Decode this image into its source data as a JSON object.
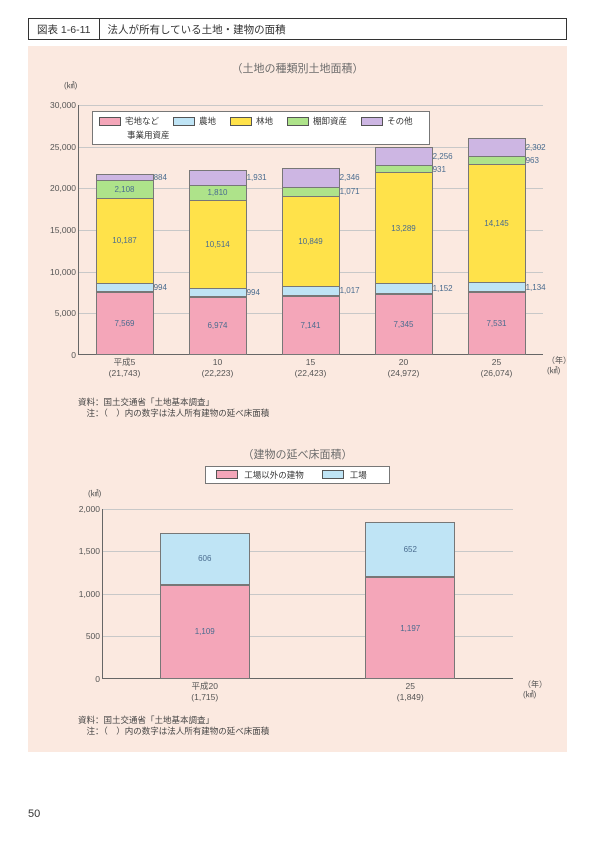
{
  "page_number": "50",
  "title_bar": {
    "number": "図表 1-6-11",
    "text": "法人が所有している土地・建物の面積"
  },
  "chart1": {
    "type": "stacked-bar",
    "subtitle": "（土地の種類別土地面積）",
    "y_unit": "(㎢)",
    "y_max_label": "30,000",
    "ylim": [
      0,
      30000
    ],
    "ytick_step": 5000,
    "yticks": [
      "0",
      "5,000",
      "10,000",
      "15,000",
      "20,000",
      "25,000",
      "30,000"
    ],
    "x_axis_end": [
      "（年）",
      "(㎢)"
    ],
    "legend": {
      "row1": [
        {
          "color": "#f4a6b9",
          "label": "宅地など"
        },
        {
          "color": "#bfe4f5",
          "label": "農地"
        },
        {
          "color": "#ffe24a",
          "label": "林地"
        },
        {
          "color": "#aee38a",
          "label": "棚卸資産"
        },
        {
          "color": "#cdb6e3",
          "label": "その他"
        }
      ],
      "row2_label": "事業用資産"
    },
    "bars": [
      {
        "x_top": "平成5",
        "x_bottom": "(21,743)",
        "segments": [
          {
            "key": "residential",
            "value": 7569,
            "label": "7,569",
            "color": "#f4a6b9",
            "inner": true
          },
          {
            "key": "farmland",
            "value": 994,
            "label": "994",
            "color": "#bfe4f5",
            "inner": true
          },
          {
            "key": "forest",
            "value": 10187,
            "label": "10,187",
            "color": "#ffe24a",
            "inner": true
          },
          {
            "key": "inventory",
            "value": 2108,
            "label": "2,108",
            "color": "#aee38a",
            "inner": true
          },
          {
            "key": "other",
            "value": 884,
            "label": "884",
            "color": "#cdb6e3",
            "inner": false
          }
        ]
      },
      {
        "x_top": "10",
        "x_bottom": "(22,223)",
        "segments": [
          {
            "key": "residential",
            "value": 6974,
            "label": "6,974",
            "color": "#f4a6b9",
            "inner": true
          },
          {
            "key": "farmland",
            "value": 994,
            "label": "994",
            "color": "#bfe4f5",
            "inner": true
          },
          {
            "key": "forest",
            "value": 10514,
            "label": "10,514",
            "color": "#ffe24a",
            "inner": true
          },
          {
            "key": "inventory",
            "value": 1810,
            "label": "1,810",
            "color": "#aee38a",
            "inner": true
          },
          {
            "key": "other",
            "value": 1931,
            "label": "1,931",
            "color": "#cdb6e3",
            "inner": false
          }
        ]
      },
      {
        "x_top": "15",
        "x_bottom": "(22,423)",
        "segments": [
          {
            "key": "residential",
            "value": 7141,
            "label": "7,141",
            "color": "#f4a6b9",
            "inner": true
          },
          {
            "key": "farmland",
            "value": 1017,
            "label": "1,017",
            "color": "#bfe4f5",
            "inner": true
          },
          {
            "key": "forest",
            "value": 10849,
            "label": "10,849",
            "color": "#ffe24a",
            "inner": true
          },
          {
            "key": "inventory",
            "value": 1071,
            "label": "1,071",
            "color": "#aee38a",
            "inner": true
          },
          {
            "key": "other",
            "value": 2346,
            "label": "2,346",
            "color": "#cdb6e3",
            "inner": false
          }
        ]
      },
      {
        "x_top": "20",
        "x_bottom": "(24,972)",
        "segments": [
          {
            "key": "residential",
            "value": 7345,
            "label": "7,345",
            "color": "#f4a6b9",
            "inner": true
          },
          {
            "key": "farmland",
            "value": 1152,
            "label": "1,152",
            "color": "#bfe4f5",
            "inner": true
          },
          {
            "key": "forest",
            "value": 13289,
            "label": "13,289",
            "color": "#ffe24a",
            "inner": true
          },
          {
            "key": "inventory",
            "value": 931,
            "label": "931",
            "color": "#aee38a",
            "inner": false
          },
          {
            "key": "other",
            "value": 2256,
            "label": "2,256",
            "color": "#cdb6e3",
            "inner": false
          }
        ]
      },
      {
        "x_top": "25",
        "x_bottom": "(26,074)",
        "segments": [
          {
            "key": "residential",
            "value": 7531,
            "label": "7,531",
            "color": "#f4a6b9",
            "inner": true
          },
          {
            "key": "farmland",
            "value": 1134,
            "label": "1,134",
            "color": "#bfe4f5",
            "inner": true
          },
          {
            "key": "forest",
            "value": 14145,
            "label": "14,145",
            "color": "#ffe24a",
            "inner": true
          },
          {
            "key": "inventory",
            "value": 963,
            "label": "963",
            "color": "#aee38a",
            "inner": false
          },
          {
            "key": "other",
            "value": 2302,
            "label": "2,302",
            "color": "#cdb6e3",
            "inner": false
          }
        ]
      }
    ],
    "source": "資料：国土交通省「土地基本調査」",
    "note": "　注：（　）内の数字は法人所有建物の延べ床面積"
  },
  "chart2": {
    "type": "stacked-bar",
    "subtitle": "（建物の延べ床面積）",
    "y_unit": "(㎢)",
    "ylim": [
      0,
      2000
    ],
    "ytick_step": 500,
    "yticks": [
      "0",
      "500",
      "1,000",
      "1,500",
      "2,000"
    ],
    "x_axis_end": [
      "（年）",
      "(㎢)"
    ],
    "legend": [
      {
        "color": "#f4a6b9",
        "label": "工場以外の建物"
      },
      {
        "color": "#bfe4f5",
        "label": "工場"
      }
    ],
    "bars": [
      {
        "x_top": "平成20",
        "x_bottom": "(1,715)",
        "segments": [
          {
            "key": "nonfactory",
            "value": 1109,
            "label": "1,109",
            "color": "#f4a6b9"
          },
          {
            "key": "factory",
            "value": 606,
            "label": "606",
            "color": "#bfe4f5"
          }
        ]
      },
      {
        "x_top": "25",
        "x_bottom": "(1,849)",
        "segments": [
          {
            "key": "nonfactory",
            "value": 1197,
            "label": "1,197",
            "color": "#f4a6b9"
          },
          {
            "key": "factory",
            "value": 652,
            "label": "652",
            "color": "#bfe4f5"
          }
        ]
      }
    ],
    "source": "資料：国土交通省「土地基本調査」",
    "note": "　注：（　）内の数字は法人所有建物の延べ床面積"
  }
}
